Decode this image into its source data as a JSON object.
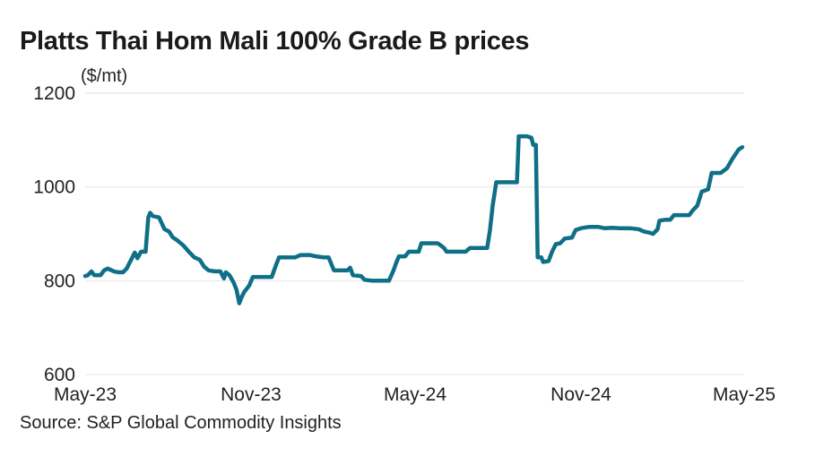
{
  "chart_data": {
    "type": "line",
    "title": "Platts Thai Hom Mali 100% Grade B prices",
    "ylabel": "($/mt)",
    "source": "Source: S&P Global Commodity Insights",
    "ylim": [
      600,
      1200
    ],
    "yticks": [
      600,
      800,
      1000,
      1200
    ],
    "xlim": [
      "2023-05-01",
      "2025-05-01"
    ],
    "xticks": [
      {
        "date": "2023-05-01",
        "label": "May-23"
      },
      {
        "date": "2023-11-01",
        "label": "Nov-23"
      },
      {
        "date": "2024-05-01",
        "label": "May-24"
      },
      {
        "date": "2024-11-01",
        "label": "Nov-24"
      },
      {
        "date": "2025-05-01",
        "label": "May-25"
      }
    ],
    "grid": true,
    "line_color": "#0e6f87",
    "series": [
      {
        "name": "",
        "points": [
          [
            "2023-05-01",
            810
          ],
          [
            "2023-05-04",
            812
          ],
          [
            "2023-05-08",
            820
          ],
          [
            "2023-05-11",
            812
          ],
          [
            "2023-05-18",
            812
          ],
          [
            "2023-05-22",
            822
          ],
          [
            "2023-05-26",
            826
          ],
          [
            "2023-06-02",
            820
          ],
          [
            "2023-06-07",
            818
          ],
          [
            "2023-06-12",
            818
          ],
          [
            "2023-06-16",
            826
          ],
          [
            "2023-06-21",
            845
          ],
          [
            "2023-06-25",
            860
          ],
          [
            "2023-06-28",
            848
          ],
          [
            "2023-07-02",
            862
          ],
          [
            "2023-07-07",
            862
          ],
          [
            "2023-07-10",
            935
          ],
          [
            "2023-07-12",
            945
          ],
          [
            "2023-07-15",
            938
          ],
          [
            "2023-07-22",
            935
          ],
          [
            "2023-07-28",
            910
          ],
          [
            "2023-08-02",
            905
          ],
          [
            "2023-08-06",
            893
          ],
          [
            "2023-08-12",
            885
          ],
          [
            "2023-08-18",
            875
          ],
          [
            "2023-08-24",
            862
          ],
          [
            "2023-08-30",
            850
          ],
          [
            "2023-09-05",
            845
          ],
          [
            "2023-09-10",
            830
          ],
          [
            "2023-09-15",
            822
          ],
          [
            "2023-09-22",
            820
          ],
          [
            "2023-09-28",
            820
          ],
          [
            "2023-10-02",
            805
          ],
          [
            "2023-10-04",
            818
          ],
          [
            "2023-10-08",
            812
          ],
          [
            "2023-10-13",
            795
          ],
          [
            "2023-10-16",
            780
          ],
          [
            "2023-10-19",
            752
          ],
          [
            "2023-10-21",
            762
          ],
          [
            "2023-10-24",
            775
          ],
          [
            "2023-10-30",
            790
          ],
          [
            "2023-11-03",
            808
          ],
          [
            "2023-11-10",
            808
          ],
          [
            "2023-11-18",
            808
          ],
          [
            "2023-11-24",
            808
          ],
          [
            "2023-11-28",
            830
          ],
          [
            "2023-12-02",
            850
          ],
          [
            "2023-12-10",
            850
          ],
          [
            "2023-12-20",
            850
          ],
          [
            "2023-12-26",
            855
          ],
          [
            "2024-01-05",
            855
          ],
          [
            "2024-01-12",
            852
          ],
          [
            "2024-01-20",
            850
          ],
          [
            "2024-01-26",
            850
          ],
          [
            "2024-02-01",
            822
          ],
          [
            "2024-02-10",
            822
          ],
          [
            "2024-02-16",
            822
          ],
          [
            "2024-02-19",
            828
          ],
          [
            "2024-02-22",
            812
          ],
          [
            "2024-03-02",
            810
          ],
          [
            "2024-03-06",
            802
          ],
          [
            "2024-03-15",
            800
          ],
          [
            "2024-03-25",
            800
          ],
          [
            "2024-04-02",
            800
          ],
          [
            "2024-04-07",
            822
          ],
          [
            "2024-04-10",
            838
          ],
          [
            "2024-04-13",
            852
          ],
          [
            "2024-04-20",
            852
          ],
          [
            "2024-04-24",
            862
          ],
          [
            "2024-05-01",
            862
          ],
          [
            "2024-05-05",
            862
          ],
          [
            "2024-05-08",
            880
          ],
          [
            "2024-05-18",
            880
          ],
          [
            "2024-05-26",
            880
          ],
          [
            "2024-05-29",
            876
          ],
          [
            "2024-06-02",
            870
          ],
          [
            "2024-06-05",
            862
          ],
          [
            "2024-06-15",
            862
          ],
          [
            "2024-06-26",
            862
          ],
          [
            "2024-07-01",
            870
          ],
          [
            "2024-07-10",
            870
          ],
          [
            "2024-07-20",
            870
          ],
          [
            "2024-07-23",
            908
          ],
          [
            "2024-07-26",
            960
          ],
          [
            "2024-07-30",
            1010
          ],
          [
            "2024-08-10",
            1010
          ],
          [
            "2024-08-22",
            1010
          ],
          [
            "2024-08-24",
            1108
          ],
          [
            "2024-09-02",
            1108
          ],
          [
            "2024-09-07",
            1105
          ],
          [
            "2024-09-09",
            1090
          ],
          [
            "2024-09-12",
            1090
          ],
          [
            "2024-09-14",
            850
          ],
          [
            "2024-09-18",
            850
          ],
          [
            "2024-09-20",
            840
          ],
          [
            "2024-09-26",
            842
          ],
          [
            "2024-09-30",
            862
          ],
          [
            "2024-10-04",
            878
          ],
          [
            "2024-10-09",
            880
          ],
          [
            "2024-10-14",
            890
          ],
          [
            "2024-10-22",
            892
          ],
          [
            "2024-10-26",
            908
          ],
          [
            "2024-11-01",
            912
          ],
          [
            "2024-11-10",
            915
          ],
          [
            "2024-11-20",
            915
          ],
          [
            "2024-11-27",
            912
          ],
          [
            "2024-12-05",
            913
          ],
          [
            "2024-12-15",
            912
          ],
          [
            "2024-12-25",
            912
          ],
          [
            "2025-01-04",
            910
          ],
          [
            "2025-01-10",
            905
          ],
          [
            "2025-01-15",
            903
          ],
          [
            "2025-01-20",
            900
          ],
          [
            "2025-01-25",
            910
          ],
          [
            "2025-01-27",
            928
          ],
          [
            "2025-02-02",
            930
          ],
          [
            "2025-02-08",
            930
          ],
          [
            "2025-02-12",
            940
          ],
          [
            "2025-02-20",
            940
          ],
          [
            "2025-03-01",
            940
          ],
          [
            "2025-03-05",
            950
          ],
          [
            "2025-03-10",
            960
          ],
          [
            "2025-03-15",
            990
          ],
          [
            "2025-03-22",
            995
          ],
          [
            "2025-03-26",
            1030
          ],
          [
            "2025-04-05",
            1030
          ],
          [
            "2025-04-12",
            1040
          ],
          [
            "2025-04-18",
            1060
          ],
          [
            "2025-04-25",
            1080
          ],
          [
            "2025-04-29",
            1085
          ]
        ]
      }
    ]
  }
}
